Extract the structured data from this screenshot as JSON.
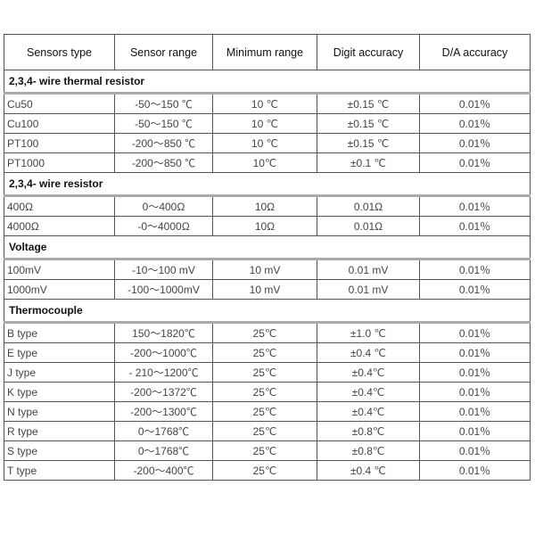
{
  "headers": [
    "Sensors type",
    "Sensor range",
    "Minimum range",
    "Digit accuracy",
    "D/A accuracy"
  ],
  "sections": [
    {
      "title": "2,3,4- wire thermal resistor",
      "rows": [
        [
          "Cu50",
          "-50～150 ℃",
          "10 ℃",
          "±0.15 ℃",
          "0.01％"
        ],
        [
          "Cu100",
          "-50～150 ℃",
          "10 ℃",
          "±0.15 ℃",
          "0.01％"
        ],
        [
          "PT100",
          "-200～850 ℃",
          "10 ℃",
          "±0.15 ℃",
          "0.01％"
        ],
        [
          "PT1000",
          "-200～850 ℃",
          "10℃",
          "±0.1 ℃",
          "0.01％"
        ]
      ]
    },
    {
      "title": "2,3,4- wire resistor",
      "rows": [
        [
          "400Ω",
          "0～400Ω",
          "10Ω",
          "0.01Ω",
          "0.01％"
        ],
        [
          "4000Ω",
          "-0～4000Ω",
          "10Ω",
          "0.01Ω",
          "0.01％"
        ]
      ]
    },
    {
      "title": "Voltage",
      "rows": [
        [
          "100mV",
          "-10～100 mV",
          "10 mV",
          "0.01 mV",
          "0.01％"
        ],
        [
          "1000mV",
          "-100～1000mV",
          "10 mV",
          "0.01 mV",
          "0.01％"
        ]
      ]
    },
    {
      "title": "Thermocouple",
      "rows": [
        [
          "B type",
          "150～1820℃",
          "25℃",
          "±1.0 ℃",
          "0.01％"
        ],
        [
          "E type",
          "-200～1000℃",
          "25℃",
          "±0.4 ℃",
          "0.01％"
        ],
        [
          "J type",
          "- 210～1200℃",
          "25℃",
          "±0.4℃",
          "0.01％"
        ],
        [
          "K type",
          "-200～1372℃",
          "25℃",
          "±0.4℃",
          "0.01％"
        ],
        [
          "N type",
          "-200～1300℃",
          "25℃",
          "±0.4℃",
          "0.01％"
        ],
        [
          "R type",
          "0～1768℃",
          "25℃",
          "±0.8℃",
          "0.01％"
        ],
        [
          "S type",
          "0～1768℃",
          "25℃",
          "±0.8℃",
          "0.01％"
        ],
        [
          "T type",
          "-200～400℃",
          "25℃",
          "±0.4 ℃",
          "0.01％"
        ]
      ]
    }
  ]
}
